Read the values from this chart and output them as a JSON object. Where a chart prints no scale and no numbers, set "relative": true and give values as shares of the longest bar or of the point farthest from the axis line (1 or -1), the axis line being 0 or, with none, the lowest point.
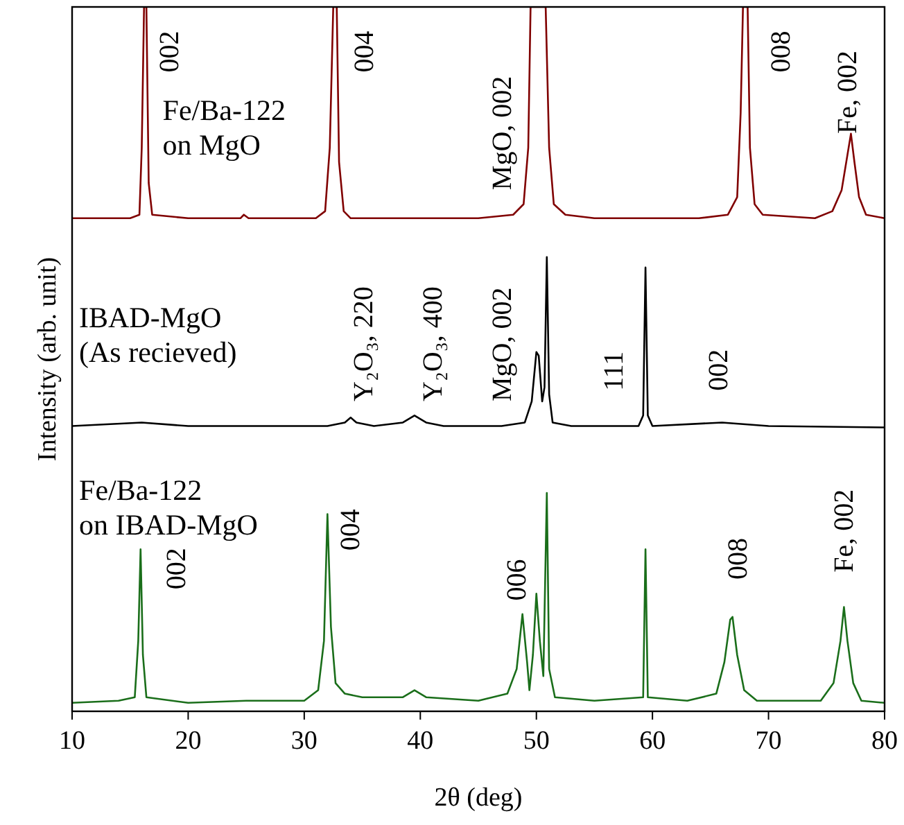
{
  "chart_data": {
    "type": "line",
    "relative": true,
    "xlabel": "2θ (deg)",
    "ylabel": "Intensity (arb. unit)",
    "xlim": [
      10,
      80
    ],
    "xticks": [
      10,
      20,
      30,
      40,
      50,
      60,
      70,
      80
    ],
    "tick_labels": "x",
    "legend": false,
    "marker": "none",
    "line_style": "solid",
    "series": [
      {
        "name": "Fe/Ba-122\non MgO",
        "color": "#800000",
        "x": [
          10,
          15,
          15.8,
          16.0,
          16.2,
          16.4,
          16.6,
          16.9,
          20,
          24.5,
          24.8,
          25.2,
          31,
          31.8,
          32.2,
          32.5,
          32.8,
          33.0,
          33.4,
          34,
          45,
          48,
          48.9,
          49.3,
          49.5,
          50.8,
          51.1,
          51.5,
          52.5,
          55,
          64,
          66.5,
          67.3,
          67.6,
          67.8,
          68.2,
          68.4,
          68.8,
          69.5,
          74,
          75.5,
          76.3,
          76.8,
          77.1,
          77.4,
          77.8,
          78.4,
          80
        ],
        "values": [
          0.7,
          0.7,
          0.705,
          0.8,
          1,
          1,
          0.75,
          0.705,
          0.7,
          0.7,
          0.705,
          0.7,
          0.7,
          0.71,
          0.8,
          1,
          1,
          0.78,
          0.71,
          0.7,
          0.7,
          0.705,
          0.72,
          0.8,
          1,
          1,
          0.8,
          0.72,
          0.705,
          0.7,
          0.7,
          0.705,
          0.73,
          0.85,
          1,
          1,
          0.8,
          0.72,
          0.705,
          0.7,
          0.71,
          0.74,
          0.79,
          0.82,
          0.78,
          0.73,
          0.705,
          0.7
        ]
      },
      {
        "name": "IBAD-MgO\n(As recieved)",
        "color": "#000000",
        "x": [
          10,
          16,
          20,
          25,
          32,
          33.5,
          34,
          34.5,
          36,
          38.5,
          39.5,
          40.5,
          42,
          47,
          49,
          49.6,
          50.0,
          50.2,
          50.5,
          50.7,
          50.9,
          51.1,
          51.4,
          53,
          58.8,
          59.2,
          59.4,
          59.6,
          60,
          66,
          70,
          80
        ],
        "values": [
          0.405,
          0.41,
          0.405,
          0.405,
          0.405,
          0.41,
          0.417,
          0.41,
          0.405,
          0.41,
          0.42,
          0.41,
          0.405,
          0.405,
          0.41,
          0.44,
          0.51,
          0.505,
          0.44,
          0.46,
          0.645,
          0.45,
          0.41,
          0.405,
          0.405,
          0.42,
          0.63,
          0.42,
          0.405,
          0.41,
          0.405,
          0.403
        ]
      },
      {
        "name": "Fe/Ba-122\non IBAD-MgO",
        "color": "#1a6e1a",
        "x": [
          10,
          14,
          15.4,
          15.7,
          15.9,
          16.1,
          16.4,
          20,
          25,
          30,
          31.2,
          31.7,
          32.0,
          32.3,
          32.7,
          33.5,
          35,
          38.5,
          39.5,
          40.5,
          45,
          47.5,
          48.3,
          48.8,
          49.2,
          49.4,
          49.7,
          50.0,
          50.3,
          50.6,
          50.9,
          51.1,
          51.6,
          55,
          59.2,
          59.4,
          59.6,
          63,
          65.5,
          66.2,
          66.7,
          66.9,
          67.3,
          67.9,
          69,
          74.5,
          75.6,
          76.2,
          76.5,
          76.8,
          77.3,
          78,
          80
        ],
        "values": [
          0.012,
          0.015,
          0.02,
          0.1,
          0.23,
          0.08,
          0.02,
          0.012,
          0.015,
          0.015,
          0.03,
          0.1,
          0.28,
          0.12,
          0.04,
          0.025,
          0.02,
          0.02,
          0.03,
          0.02,
          0.015,
          0.025,
          0.06,
          0.138,
          0.07,
          0.03,
          0.08,
          0.167,
          0.1,
          0.05,
          0.31,
          0.06,
          0.02,
          0.015,
          0.02,
          0.23,
          0.02,
          0.015,
          0.025,
          0.07,
          0.13,
          0.134,
          0.08,
          0.03,
          0.015,
          0.015,
          0.04,
          0.1,
          0.148,
          0.1,
          0.04,
          0.015,
          0.012
        ]
      }
    ],
    "annotations": [
      "002",
      "004",
      "MgO, 002",
      "008",
      "Fe, 002",
      "Y₂O₃, 220",
      "Y₂O₃, 400",
      "MgO, 002",
      "111",
      "002",
      "002",
      "004",
      "006",
      "008",
      "Fe, 002"
    ]
  }
}
